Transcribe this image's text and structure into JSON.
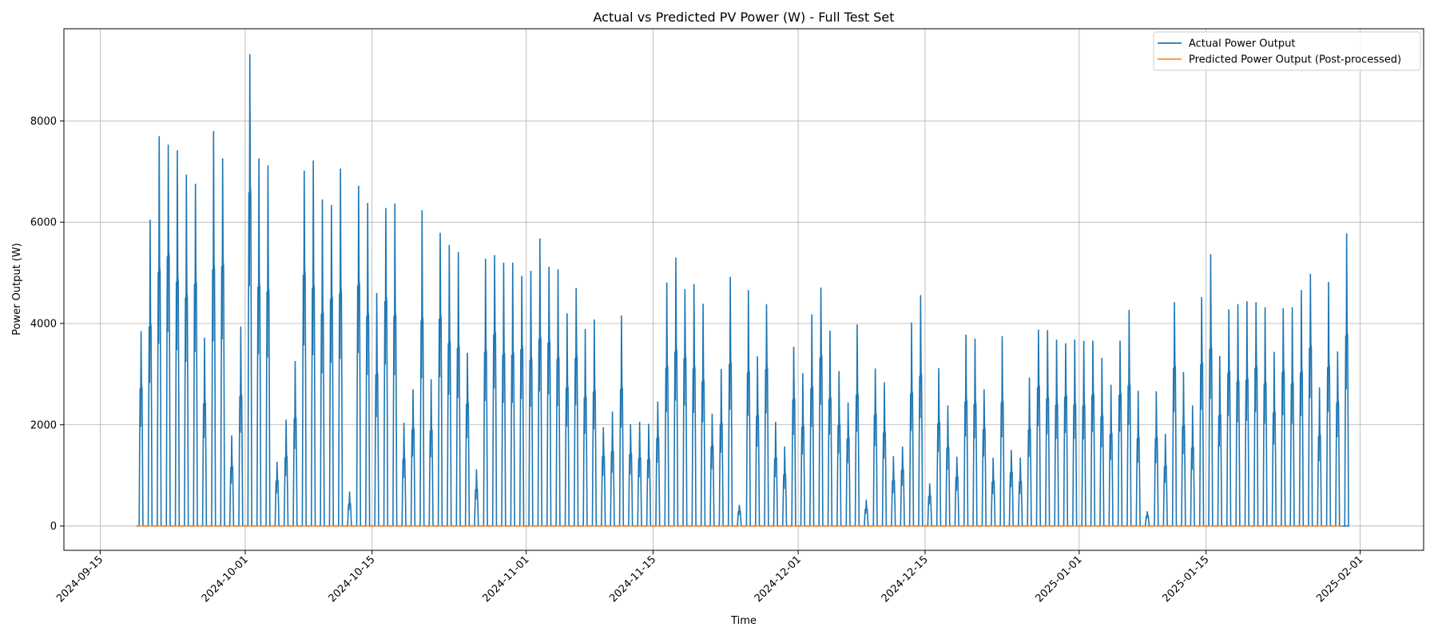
{
  "chart_data": {
    "type": "line",
    "title": "Actual vs Predicted PV Power (W) - Full Test Set",
    "xlabel": "Time",
    "ylabel": "Power Output (W)",
    "xlim": [
      "2024-09-11",
      "2025-02-08"
    ],
    "ylim": [
      -480,
      9820
    ],
    "x_ticks": [
      "2024-09-15",
      "2024-10-01",
      "2024-10-15",
      "2024-11-01",
      "2024-11-15",
      "2024-12-01",
      "2024-12-15",
      "2025-01-01",
      "2025-01-15",
      "2025-02-01"
    ],
    "y_ticks": [
      0,
      2000,
      4000,
      6000,
      8000
    ],
    "grid": true,
    "legend_position": "top-right",
    "series": [
      {
        "name": "Actual Power Output",
        "color": "#1f77b4",
        "start_date": "2024-09-19",
        "end_date": "2025-01-30",
        "daily_peaks": [
          3850,
          6050,
          7700,
          7530,
          7420,
          6940,
          6760,
          3720,
          7800,
          7260,
          1790,
          3940,
          9320,
          7260,
          7120,
          1270,
          2100,
          3260,
          7020,
          7220,
          6450,
          6340,
          7060,
          680,
          6720,
          6380,
          4600,
          6280,
          6370,
          2040,
          2700,
          6240,
          2900,
          5790,
          5550,
          5410,
          3420,
          1120,
          5280,
          5350,
          5200,
          5200,
          4940,
          5040,
          5680,
          5120,
          5070,
          4200,
          4700,
          3890,
          4080,
          1950,
          2260,
          4160,
          2010,
          2060,
          2020,
          2460,
          4810,
          5300,
          4680,
          4780,
          4390,
          2220,
          3100,
          4920,
          420,
          4660,
          3350,
          4380,
          2060,
          1570,
          3540,
          3020,
          4180,
          4710,
          3860,
          3060,
          2440,
          3980,
          520,
          3110,
          2840,
          1380,
          1570,
          4020,
          4560,
          840,
          3120,
          2380,
          1370,
          3780,
          3700,
          2700,
          1350,
          3750,
          1500,
          1350,
          2930,
          3880,
          3870,
          3680,
          3610,
          3680,
          3660,
          3660,
          3320,
          2790,
          3660,
          4270,
          2670,
          290,
          2660,
          1820,
          4420,
          3040,
          2380,
          4520,
          5370,
          3360,
          4280,
          4380,
          4440,
          4420,
          4320,
          3440,
          4300,
          4320,
          4660,
          4980,
          2740,
          4820,
          3450,
          5780
        ]
      },
      {
        "name": "Predicted Power Output (Post-processed)",
        "color": "#ff7f0e",
        "start_date": "2024-09-19",
        "end_date": "2025-01-30",
        "value": 0
      }
    ]
  }
}
